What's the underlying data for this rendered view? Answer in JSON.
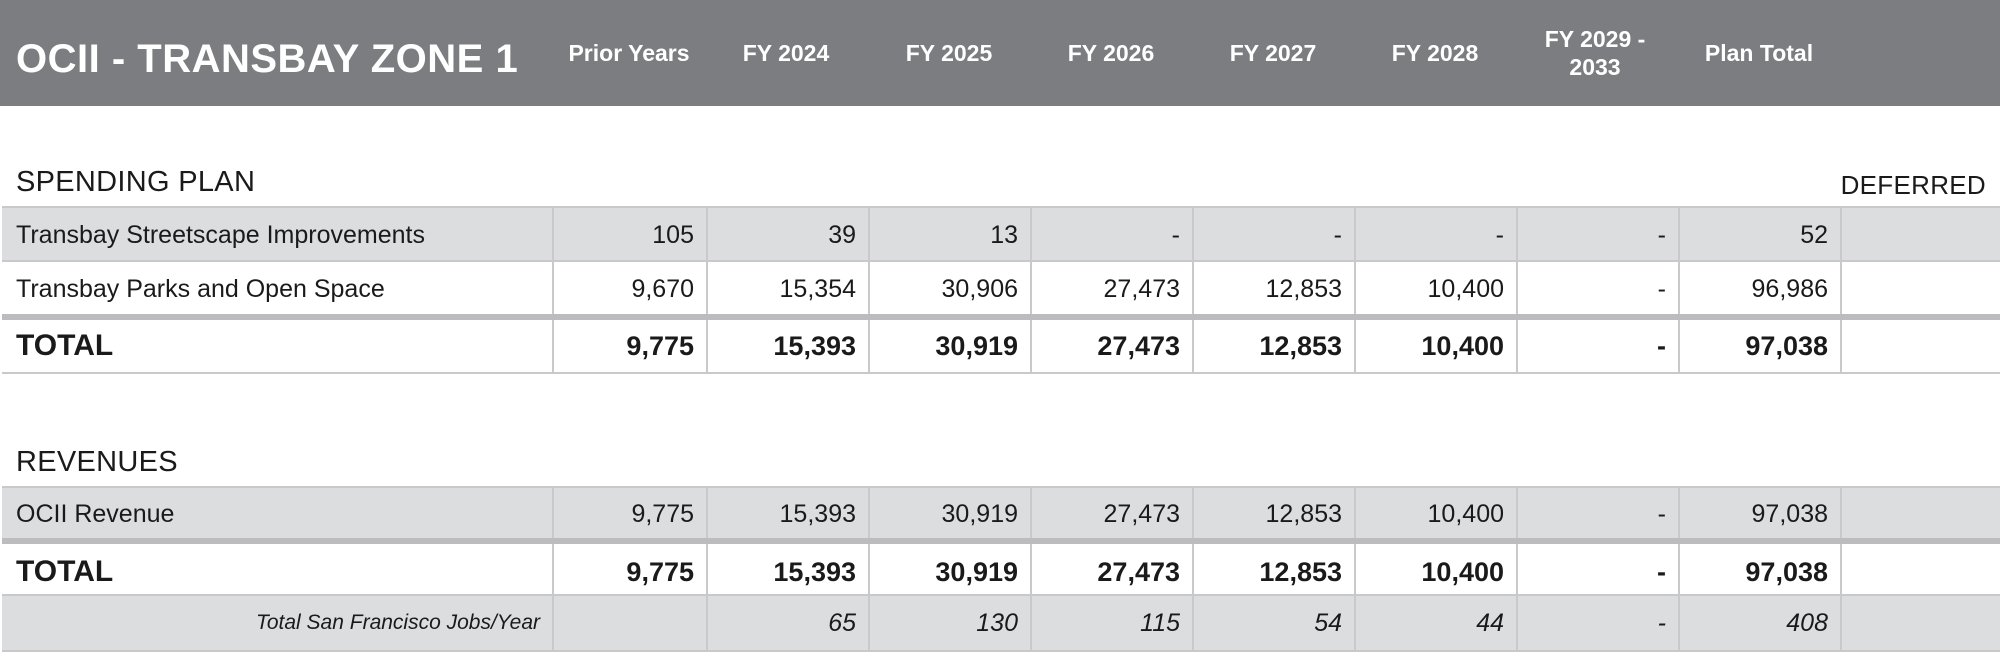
{
  "header": {
    "title": "OCII - TRANSBAY ZONE 1",
    "columns": [
      "Prior Years",
      "FY 2024",
      "FY 2025",
      "FY 2026",
      "FY 2027",
      "FY 2028",
      "FY 2029 - 2033",
      "Plan Total"
    ]
  },
  "spending": {
    "label": "SPENDING PLAN",
    "deferred_label": "DEFERRED",
    "rows": [
      {
        "label": "Transbay Streetscape Improvements",
        "values": [
          "105",
          "39",
          "13",
          "-",
          "-",
          "-",
          "-",
          "52",
          ""
        ]
      },
      {
        "label": "Transbay Parks and Open Space",
        "values": [
          "9,670",
          "15,354",
          "30,906",
          "27,473",
          "12,853",
          "10,400",
          "-",
          "96,986",
          ""
        ]
      }
    ],
    "total": {
      "label": "TOTAL",
      "values": [
        "9,775",
        "15,393",
        "30,919",
        "27,473",
        "12,853",
        "10,400",
        "-",
        "97,038",
        ""
      ]
    }
  },
  "revenues": {
    "label": "REVENUES",
    "rows": [
      {
        "label": "OCII Revenue",
        "values": [
          "9,775",
          "15,393",
          "30,919",
          "27,473",
          "12,853",
          "10,400",
          "-",
          "97,038",
          ""
        ]
      }
    ],
    "total": {
      "label": "TOTAL",
      "values": [
        "9,775",
        "15,393",
        "30,919",
        "27,473",
        "12,853",
        "10,400",
        "-",
        "97,038",
        ""
      ]
    },
    "jobs": {
      "label": "Total San Francisco Jobs/Year",
      "values": [
        "",
        "65",
        "130",
        "115",
        "54",
        "44",
        "-",
        "408",
        ""
      ]
    }
  }
}
